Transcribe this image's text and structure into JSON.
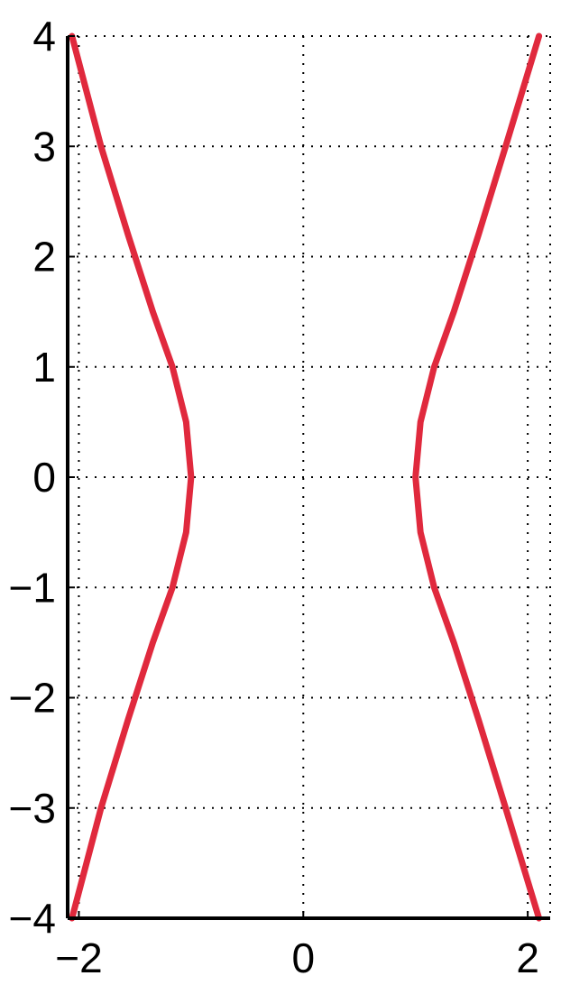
{
  "chart_data": {
    "type": "line",
    "title": "",
    "xlabel": "",
    "ylabel": "",
    "xlim": [
      -2.1,
      2.2
    ],
    "ylim": [
      -4,
      4
    ],
    "grid": true,
    "legend": "none",
    "line_color": "#e0293d",
    "x_ticks": [
      -2,
      0,
      2
    ],
    "x_tick_labels": [
      "−2",
      "0",
      "2"
    ],
    "y_ticks": [
      4,
      3,
      2,
      1,
      0,
      -1,
      -2,
      -3,
      -4
    ],
    "y_tick_labels": [
      "4",
      "3",
      "2",
      "1",
      "0",
      "−1",
      "−2",
      "−3",
      "−4"
    ],
    "series": [
      {
        "x": [
          -2.0616,
          -1.8028,
          -1.562,
          -1.3416,
          -1.1662,
          -1.044,
          -1.0,
          -1.044,
          -1.1662,
          -1.3416,
          -1.562,
          -1.8028,
          -2.0616
        ],
        "y": [
          -4.0,
          -3.0,
          -2.2,
          -1.5,
          -1.0,
          -0.5,
          0.0,
          0.5,
          1.0,
          1.5,
          2.2,
          3.0,
          4.0
        ]
      },
      {
        "x": [
          2.1,
          1.8028,
          1.562,
          1.3416,
          1.1662,
          1.044,
          1.0,
          1.044,
          1.1662,
          1.3416,
          1.562,
          1.8028,
          2.1
        ],
        "y": [
          -4.0,
          -3.0,
          -2.2,
          -1.5,
          -1.0,
          -0.5,
          0.0,
          0.5,
          1.0,
          1.5,
          2.2,
          3.0,
          4.0
        ]
      }
    ]
  }
}
